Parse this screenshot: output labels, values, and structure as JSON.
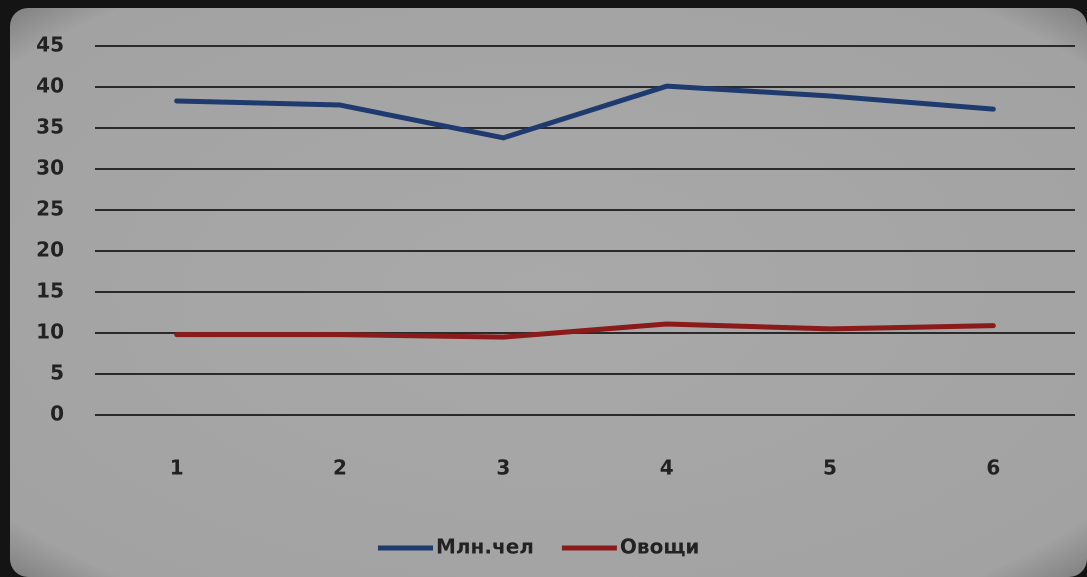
{
  "chart_data": {
    "type": "line",
    "categories": [
      "1",
      "2",
      "3",
      "4",
      "5",
      "6"
    ],
    "series": [
      {
        "name": "Млн.чел",
        "color": "#1f3a6e",
        "values": [
          38.3,
          37.8,
          33.8,
          40.1,
          38.9,
          37.3
        ]
      },
      {
        "name": "Овощи",
        "color": "#8b1a1a",
        "values": [
          9.8,
          9.8,
          9.5,
          11.1,
          10.5,
          10.9
        ]
      }
    ],
    "ylim": [
      0,
      45
    ],
    "yticks": [
      0,
      5,
      10,
      15,
      20,
      25,
      30,
      35,
      40,
      45
    ],
    "grid": true,
    "legend": "bottom"
  }
}
